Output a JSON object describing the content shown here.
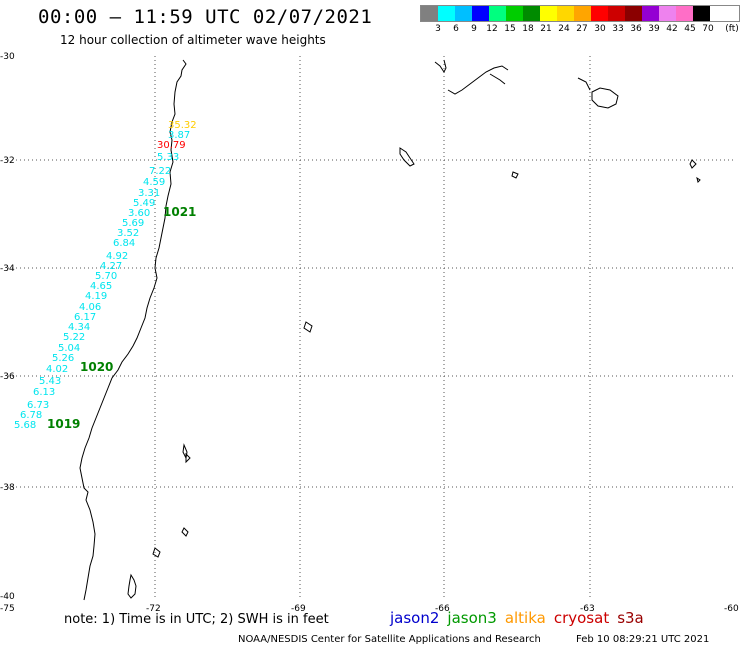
{
  "header": {
    "title": "00:00 – 11:59 UTC 02/07/2021",
    "subtitle": "12 hour collection of altimeter wave heights"
  },
  "legend": {
    "colors": [
      "#808080",
      "#00ffff",
      "#00bfff",
      "#0000ff",
      "#00ff7f",
      "#00cd00",
      "#008b00",
      "#ffff00",
      "#ffd700",
      "#ffa500",
      "#ff0000",
      "#cd0000",
      "#8b0000",
      "#9400d3",
      "#ee82ee",
      "#ff6ec7",
      "#000000"
    ],
    "labels": [
      "3",
      "6",
      "9",
      "12",
      "15",
      "18",
      "21",
      "24",
      "27",
      "30",
      "33",
      "36",
      "39",
      "42",
      "45",
      "70",
      "(ft)"
    ]
  },
  "axes": {
    "lat_labels": [
      "-30",
      "-32",
      "-34",
      "-36",
      "-38",
      "-40"
    ],
    "lon_labels": [
      "-75",
      "-72",
      "-69",
      "-66",
      "-63",
      "-60"
    ]
  },
  "map": {
    "wave_heights": [
      {
        "value": "35.32",
        "color": "#ffcc00"
      },
      {
        "value": "3.87",
        "color": "#00e5ee"
      },
      {
        "value": "30.79",
        "color": "#ff0000"
      },
      {
        "value": "5.33",
        "color": "#00e5ee"
      },
      {
        "value": "7.22",
        "color": "#00e5ee"
      },
      {
        "value": "4.59",
        "color": "#00e5ee"
      },
      {
        "value": "3.31",
        "color": "#00e5ee"
      },
      {
        "value": "5.49",
        "color": "#00e5ee"
      },
      {
        "value": "3.60",
        "color": "#00e5ee"
      },
      {
        "value": "5.69",
        "color": "#00e5ee"
      },
      {
        "value": "3.52",
        "color": "#00e5ee"
      },
      {
        "value": "6.84",
        "color": "#00e5ee"
      },
      {
        "value": "4.92",
        "color": "#00e5ee"
      },
      {
        "value": "4.27",
        "color": "#00e5ee"
      },
      {
        "value": "5.70",
        "color": "#00e5ee"
      },
      {
        "value": "4.65",
        "color": "#00e5ee"
      },
      {
        "value": "4.19",
        "color": "#00e5ee"
      },
      {
        "value": "4.06",
        "color": "#00e5ee"
      },
      {
        "value": "6.17",
        "color": "#00e5ee"
      },
      {
        "value": "4.34",
        "color": "#00e5ee"
      },
      {
        "value": "5.22",
        "color": "#00e5ee"
      },
      {
        "value": "5.04",
        "color": "#00e5ee"
      },
      {
        "value": "5.26",
        "color": "#00e5ee"
      },
      {
        "value": "4.02",
        "color": "#00e5ee"
      },
      {
        "value": "5.43",
        "color": "#00e5ee"
      },
      {
        "value": "6.13",
        "color": "#00e5ee"
      },
      {
        "value": "6.73",
        "color": "#00e5ee"
      },
      {
        "value": "6.78",
        "color": "#00e5ee"
      },
      {
        "value": "5.68",
        "color": "#00e5ee"
      }
    ],
    "pass_times": [
      "1021",
      "1020",
      "1019"
    ],
    "pass_color": "#008000"
  },
  "note": "note:  1) Time is in UTC;  2) SWH is in feet",
  "satellites": [
    {
      "name": "jason2",
      "color": "#0000cc"
    },
    {
      "name": "jason3",
      "color": "#009900"
    },
    {
      "name": "altika",
      "color": "#ff9900"
    },
    {
      "name": "cryosat",
      "color": "#cc0000"
    },
    {
      "name": "s3a",
      "color": "#990000"
    }
  ],
  "footer": {
    "credit": "NOAA/NESDIS Center for Satellite Applications and Research",
    "timestamp": "Feb 10 08:29:21 UTC 2021"
  }
}
